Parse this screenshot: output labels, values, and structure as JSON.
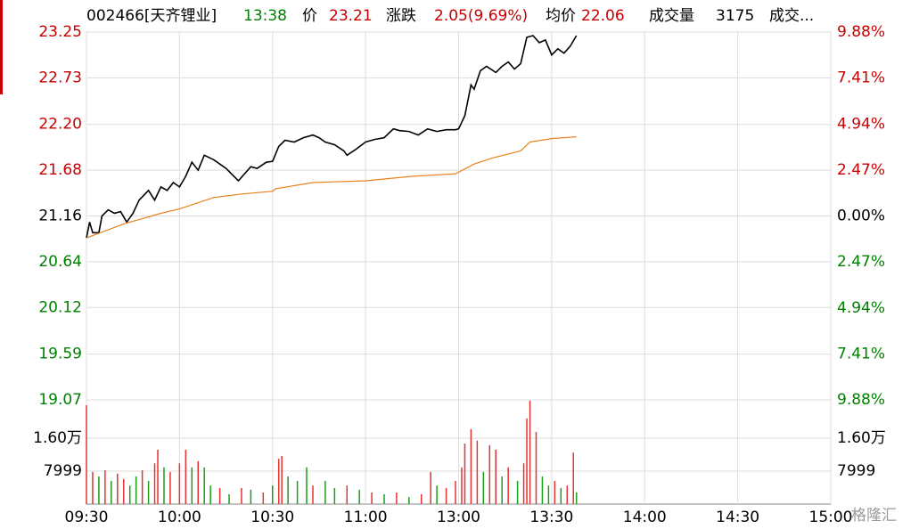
{
  "chart_data": {
    "type": "intraday",
    "header": [
      "002466[天齐锂业]",
      "13:38",
      "价",
      "23.21",
      "涨跌",
      "2.05(9.69%)",
      "均价",
      "22.06",
      "成交量",
      "3175",
      "成交..."
    ],
    "header_colors": [
      "#000000",
      "#008000",
      "#000000",
      "#c80000",
      "#000000",
      "#c80000",
      "#000000",
      "#c80000",
      "#000000",
      "#000000",
      "#000000"
    ],
    "xlim": [
      0,
      240
    ],
    "xticks": [
      {
        "value": 0,
        "label": "09:30"
      },
      {
        "value": 30,
        "label": "10:00"
      },
      {
        "value": 60,
        "label": "10:30"
      },
      {
        "value": 90,
        "label": "11:00"
      },
      {
        "value": 120,
        "label": "13:00"
      },
      {
        "value": 150,
        "label": "13:30"
      },
      {
        "value": 180,
        "label": "14:00"
      },
      {
        "value": 210,
        "label": "14:30"
      },
      {
        "value": 240,
        "label": "15:00"
      }
    ],
    "ylim": [
      19.07,
      23.25
    ],
    "yticks": [
      23.25,
      22.73,
      {
        "value": 22.2,
        "label": "22.20"
      },
      21.68,
      21.16,
      20.64,
      20.12,
      19.59,
      19.07
    ],
    "y2lim": [
      -9.88,
      9.88
    ],
    "y2ticks": [
      {
        "value": 9.88,
        "label": "9.88%"
      },
      {
        "value": 7.41,
        "label": "7.41%"
      },
      {
        "value": 4.94,
        "label": "4.94%"
      },
      {
        "value": 2.47,
        "label": "2.47%"
      },
      {
        "value": 0,
        "label": "0.00%"
      },
      {
        "value": -2.47,
        "label": "2.47%"
      },
      {
        "value": -4.94,
        "label": "4.94%"
      },
      {
        "value": -7.41,
        "label": "7.41%"
      },
      {
        "value": -9.88,
        "label": "9.88%"
      }
    ],
    "up_color": "#c80000",
    "down_color": "#008000",
    "flat_color": "#000000",
    "grid": true,
    "series": [
      {
        "name": "价",
        "color": "#000000",
        "x": [
          0,
          1,
          2,
          4,
          5,
          7,
          9,
          11,
          13,
          15,
          17,
          20,
          22,
          24,
          26,
          28,
          30,
          32,
          34,
          36,
          38,
          41,
          43,
          45,
          47,
          49,
          51,
          53,
          55,
          58,
          60,
          62,
          64,
          67,
          70,
          73,
          75,
          77,
          80,
          83,
          84,
          87,
          90,
          93,
          96,
          99,
          101,
          104,
          107,
          110,
          113,
          116,
          119,
          120,
          122,
          124,
          125,
          127,
          129,
          132,
          134,
          136,
          138,
          140,
          142,
          144,
          146,
          148,
          150,
          152,
          154,
          156,
          158
        ],
        "values": [
          20.91,
          21.09,
          20.97,
          20.97,
          21.16,
          21.23,
          21.19,
          21.21,
          21.09,
          21.19,
          21.34,
          21.45,
          21.34,
          21.49,
          21.45,
          21.54,
          21.49,
          21.61,
          21.77,
          21.68,
          21.85,
          21.8,
          21.75,
          21.7,
          21.63,
          21.56,
          21.64,
          21.72,
          21.7,
          21.77,
          21.78,
          21.95,
          22.02,
          22.0,
          22.05,
          22.08,
          22.05,
          22.0,
          21.97,
          21.9,
          21.85,
          21.92,
          22.0,
          22.03,
          22.05,
          22.15,
          22.13,
          22.12,
          22.08,
          22.15,
          22.12,
          22.14,
          22.14,
          22.15,
          22.3,
          22.65,
          22.6,
          22.81,
          22.86,
          22.79,
          22.86,
          22.91,
          22.83,
          22.89,
          23.19,
          23.21,
          23.13,
          23.16,
          22.99,
          23.06,
          23.01,
          23.09,
          23.21
        ]
      },
      {
        "name": "均价",
        "color": "#e8821e",
        "x": [
          0,
          12,
          24,
          30,
          41,
          50,
          60,
          61,
          73,
          90,
          105,
          119,
          125,
          131,
          140,
          143,
          150,
          158
        ],
        "values": [
          20.91,
          21.07,
          21.19,
          21.24,
          21.37,
          21.41,
          21.44,
          21.47,
          21.54,
          21.56,
          21.61,
          21.64,
          21.75,
          21.82,
          21.9,
          22.0,
          22.04,
          22.06
        ]
      }
    ],
    "volume": {
      "ylim": [
        0,
        25300
      ],
      "yticks": [
        {
          "value": 16000,
          "label": "1.60万"
        },
        7999
      ],
      "x": [
        0,
        2,
        4,
        6,
        8,
        10,
        12,
        14,
        16,
        18,
        20,
        22,
        23,
        25,
        27,
        30,
        32,
        34,
        36,
        38,
        40,
        43,
        46,
        50,
        53,
        57,
        60,
        62,
        63,
        65,
        68,
        71,
        73,
        77,
        80,
        84,
        88,
        92,
        96,
        100,
        104,
        108,
        111,
        113,
        116,
        119,
        121,
        122,
        124,
        126,
        128,
        130,
        132,
        134,
        136,
        139,
        141,
        142,
        143,
        145,
        147,
        149,
        151,
        153,
        155,
        157,
        158
      ],
      "values": [
        24000,
        7800,
        6700,
        8200,
        5600,
        7400,
        6100,
        4500,
        6700,
        8200,
        5600,
        9900,
        13200,
        8900,
        7800,
        9900,
        13200,
        8900,
        10400,
        8900,
        4500,
        3900,
        2400,
        3900,
        3500,
        2800,
        4500,
        11000,
        11700,
        6700,
        5600,
        8900,
        4500,
        5600,
        3900,
        4500,
        3500,
        2800,
        2400,
        2800,
        1700,
        2400,
        7800,
        4500,
        3900,
        5600,
        8900,
        14700,
        18200,
        15400,
        7800,
        14300,
        13200,
        6700,
        8900,
        5600,
        9900,
        20800,
        25100,
        17500,
        6700,
        4500,
        5600,
        3900,
        4500,
        12500,
        2800
      ],
      "colors": [
        "#e63232",
        "#e63232",
        "#1a9e1a",
        "#e63232",
        "#1a9e1a",
        "#e63232",
        "#e63232",
        "#1a9e1a",
        "#1a9e1a",
        "#e63232",
        "#1a9e1a",
        "#e63232",
        "#e63232",
        "#1a9e1a",
        "#e63232",
        "#e63232",
        "#e63232",
        "#1a9e1a",
        "#e63232",
        "#1a9e1a",
        "#1a9e1a",
        "#e63232",
        "#1a9e1a",
        "#e63232",
        "#1a9e1a",
        "#e63232",
        "#1a9e1a",
        "#e63232",
        "#e63232",
        "#1a9e1a",
        "#1a9e1a",
        "#1a9e1a",
        "#e63232",
        "#1a9e1a",
        "#1a9e1a",
        "#e63232",
        "#1a9e1a",
        "#e63232",
        "#1a9e1a",
        "#e63232",
        "#1a9e1a",
        "#e63232",
        "#e63232",
        "#1a9e1a",
        "#e63232",
        "#e63232",
        "#e63232",
        "#e63232",
        "#e63232",
        "#e63232",
        "#1a9e1a",
        "#e63232",
        "#e63232",
        "#1a9e1a",
        "#e63232",
        "#1a9e1a",
        "#e63232",
        "#e63232",
        "#e63232",
        "#e63232",
        "#1a9e1a",
        "#1a9e1a",
        "#e63232",
        "#1a9e1a",
        "#e63232",
        "#e63232",
        "#1a9e1a"
      ]
    },
    "watermark": "格隆汇"
  }
}
